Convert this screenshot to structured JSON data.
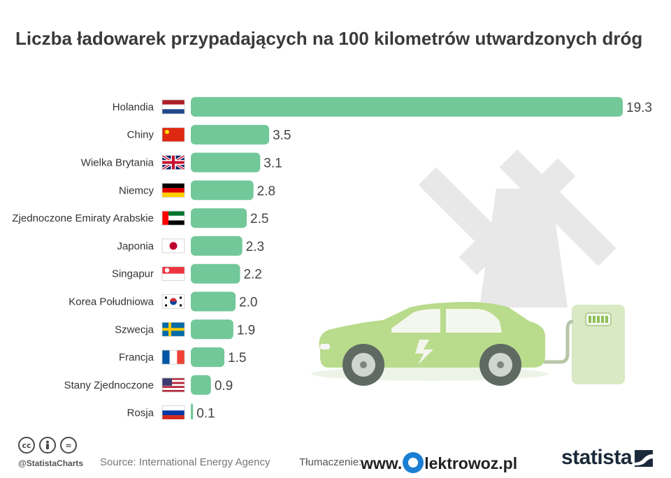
{
  "title": "Liczba ładowarek przypadających na 100 kilometrów utwardzonych dróg",
  "chart_data": {
    "type": "bar",
    "orientation": "horizontal",
    "categories": [
      "Holandia",
      "Chiny",
      "Wielka Brytania",
      "Niemcy",
      "Zjednoczone Emiraty Arabskie",
      "Japonia",
      "Singapur",
      "Korea Południowa",
      "Szwecja",
      "Francja",
      "Stany Zjednoczone",
      "Rosja"
    ],
    "values": [
      19.3,
      3.5,
      3.1,
      2.8,
      2.5,
      2.3,
      2.2,
      2.0,
      1.9,
      1.5,
      0.9,
      0.1
    ],
    "value_labels": [
      "19.3",
      "3.5",
      "3.1",
      "2.8",
      "2.5",
      "2.3",
      "2.2",
      "2.0",
      "1.9",
      "1.5",
      "0.9",
      "0.1"
    ],
    "flags": [
      "nl",
      "cn",
      "gb",
      "de",
      "ae",
      "jp",
      "sg",
      "kr",
      "se",
      "fr",
      "us",
      "ru"
    ],
    "xlim": [
      0,
      19.3
    ],
    "grid": false,
    "bar_color": "#72c899"
  },
  "footer": {
    "cc_icons": [
      "cc-icon",
      "attribution-icon",
      "no-derivatives-icon"
    ],
    "cc_glyphs": [
      "cc",
      "",
      "="
    ],
    "handle": "@StatistaCharts",
    "source": "Source: International Energy Agency",
    "translation_label": "Tłumaczenie:",
    "site_prefix": "www.",
    "site_suffix": "lektrowoz.pl",
    "brand": "statista"
  },
  "colors": {
    "bar": "#72c899",
    "title": "#3a3a3a",
    "label": "#333333",
    "value": "#444444"
  }
}
